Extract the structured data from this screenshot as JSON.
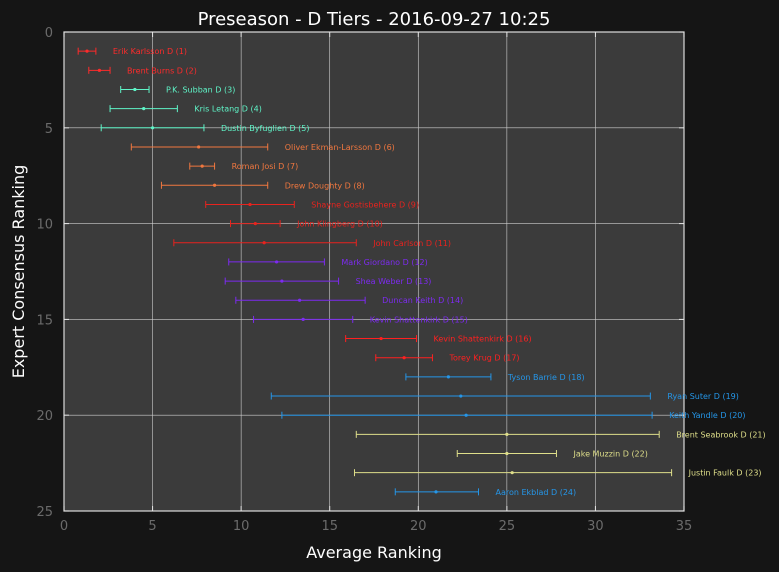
{
  "chart_data": {
    "type": "scatter",
    "title": "Preseason - D Tiers - 2016-09-27 10:25",
    "xlabel": "Average Ranking",
    "ylabel": "Expert Consensus Ranking",
    "xlim": [
      0,
      35
    ],
    "ylim": [
      25,
      0
    ],
    "x_ticks": [
      0,
      5,
      10,
      15,
      20,
      25,
      30,
      35
    ],
    "y_ticks": [
      0,
      5,
      10,
      15,
      20,
      25
    ],
    "grid": true,
    "legend": "none",
    "tier_colors": {
      "1": "#ff2b2b",
      "2": "#5ff5c8",
      "3": "#f0773f",
      "4": "#e8231e",
      "5": "#7d2bf0",
      "6": "#ff2020",
      "7": "#2596e8",
      "8": "#dede8a"
    },
    "players": [
      {
        "label": "Erik Karlsson D (1)",
        "rank": 1,
        "avg": 1.3,
        "min": 0.8,
        "max": 1.8,
        "tier": 1
      },
      {
        "label": "Brent Burns D (2)",
        "rank": 2,
        "avg": 2.0,
        "min": 1.4,
        "max": 2.6,
        "tier": 1
      },
      {
        "label": "P.K. Subban D (3)",
        "rank": 3,
        "avg": 4.0,
        "min": 3.2,
        "max": 4.8,
        "tier": 2
      },
      {
        "label": "Kris Letang D (4)",
        "rank": 4,
        "avg": 4.5,
        "min": 2.6,
        "max": 6.4,
        "tier": 2
      },
      {
        "label": "Dustin Byfuglien D (5)",
        "rank": 5,
        "avg": 5.0,
        "min": 2.1,
        "max": 7.9,
        "tier": 2
      },
      {
        "label": "Oliver Ekman-Larsson D (6)",
        "rank": 6,
        "avg": 7.6,
        "min": 3.8,
        "max": 11.5,
        "tier": 3
      },
      {
        "label": "Roman Josi D (7)",
        "rank": 7,
        "avg": 7.8,
        "min": 7.1,
        "max": 8.5,
        "tier": 3
      },
      {
        "label": "Drew Doughty D (8)",
        "rank": 8,
        "avg": 8.5,
        "min": 5.5,
        "max": 11.5,
        "tier": 3
      },
      {
        "label": "Shayne Gostisbehere D (9)",
        "rank": 9,
        "avg": 10.5,
        "min": 8.0,
        "max": 13.0,
        "tier": 4
      },
      {
        "label": "John Klingberg D (10)",
        "rank": 10,
        "avg": 10.8,
        "min": 9.4,
        "max": 12.2,
        "tier": 4
      },
      {
        "label": "John Carlson D (11)",
        "rank": 11,
        "avg": 11.3,
        "min": 6.2,
        "max": 16.5,
        "tier": 4
      },
      {
        "label": "Mark Giordano D (12)",
        "rank": 12,
        "avg": 12.0,
        "min": 9.3,
        "max": 14.7,
        "tier": 5
      },
      {
        "label": "Shea Weber D (13)",
        "rank": 13,
        "avg": 12.3,
        "min": 9.1,
        "max": 15.5,
        "tier": 5
      },
      {
        "label": "Duncan Keith D (14)",
        "rank": 14,
        "avg": 13.3,
        "min": 9.7,
        "max": 17.0,
        "tier": 5
      },
      {
        "label": "Kevin Shattenkirk D (15)",
        "rank": 15,
        "avg": 13.5,
        "min": 10.7,
        "max": 16.3,
        "tier": 5
      },
      {
        "label": "Kevin Shattenkirk D (16)",
        "rank": 16,
        "avg": 17.9,
        "min": 15.9,
        "max": 19.9,
        "tier": 6
      },
      {
        "label": "Torey Krug D (17)",
        "rank": 17,
        "avg": 19.2,
        "min": 17.6,
        "max": 20.8,
        "tier": 6
      },
      {
        "label": "Tyson Barrie D (18)",
        "rank": 18,
        "avg": 21.7,
        "min": 19.3,
        "max": 24.1,
        "tier": 7
      },
      {
        "label": "Ryan Suter D (19)",
        "rank": 19,
        "avg": 22.4,
        "min": 11.7,
        "max": 33.1,
        "tier": 7
      },
      {
        "label": "Keith Yandle D (20)",
        "rank": 20,
        "avg": 22.7,
        "min": 12.3,
        "max": 33.2,
        "tier": 7
      },
      {
        "label": "Brent Seabrook D (21)",
        "rank": 21,
        "avg": 25.0,
        "min": 16.5,
        "max": 33.6,
        "tier": 8
      },
      {
        "label": "Jake Muzzin D (22)",
        "rank": 22,
        "avg": 25.0,
        "min": 22.2,
        "max": 27.8,
        "tier": 8
      },
      {
        "label": "Justin Faulk D (23)",
        "rank": 23,
        "avg": 25.3,
        "min": 16.4,
        "max": 34.3,
        "tier": 8
      },
      {
        "label": "Aaron Ekblad D (24)",
        "rank": 24,
        "avg": 21.0,
        "min": 18.7,
        "max": 23.4,
        "tier": 7
      }
    ]
  }
}
